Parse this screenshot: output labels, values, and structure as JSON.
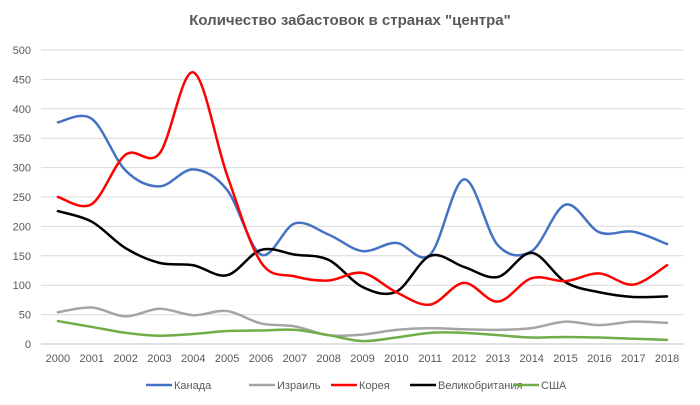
{
  "chart_data": {
    "type": "line",
    "title": "Количество забастовок в странах \"центра\"",
    "xlabel": "",
    "ylabel": "",
    "ylim": [
      0,
      500
    ],
    "yticks": [
      0,
      50,
      100,
      150,
      200,
      250,
      300,
      350,
      400,
      450,
      500
    ],
    "grid": true,
    "legend_position": "bottom",
    "categories": [
      "2000",
      "2001",
      "2002",
      "2003",
      "2004",
      "2005",
      "2006",
      "2007",
      "2008",
      "2009",
      "2010",
      "2011",
      "2012",
      "2013",
      "2014",
      "2015",
      "2016",
      "2017",
      "2018"
    ],
    "series": [
      {
        "name": "Канада",
        "color": "#4472C4",
        "values": [
          377,
          383,
          295,
          268,
          297,
          262,
          152,
          205,
          186,
          158,
          172,
          152,
          280,
          168,
          158,
          237,
          190,
          191,
          170
        ]
      },
      {
        "name": "Израиль",
        "color": "#A5A5A5",
        "values": [
          54,
          62,
          47,
          60,
          49,
          56,
          35,
          30,
          15,
          16,
          24,
          27,
          25,
          24,
          27,
          38,
          32,
          38,
          36
        ]
      },
      {
        "name": "Корея",
        "color": "#FF0000",
        "values": [
          250,
          238,
          322,
          324,
          462,
          287,
          139,
          115,
          108,
          121,
          88,
          67,
          104,
          72,
          112,
          107,
          120,
          101,
          134
        ]
      },
      {
        "name": "Великобритания",
        "color": "#000000",
        "values": [
          226,
          208,
          163,
          138,
          134,
          117,
          160,
          152,
          143,
          97,
          89,
          150,
          131,
          114,
          155,
          105,
          88,
          80,
          81
        ]
      },
      {
        "name": "США",
        "color": "#70AD47",
        "values": [
          39,
          29,
          19,
          14,
          17,
          22,
          23,
          24,
          15,
          5,
          11,
          19,
          19,
          15,
          11,
          12,
          11,
          9,
          7
        ]
      }
    ]
  }
}
